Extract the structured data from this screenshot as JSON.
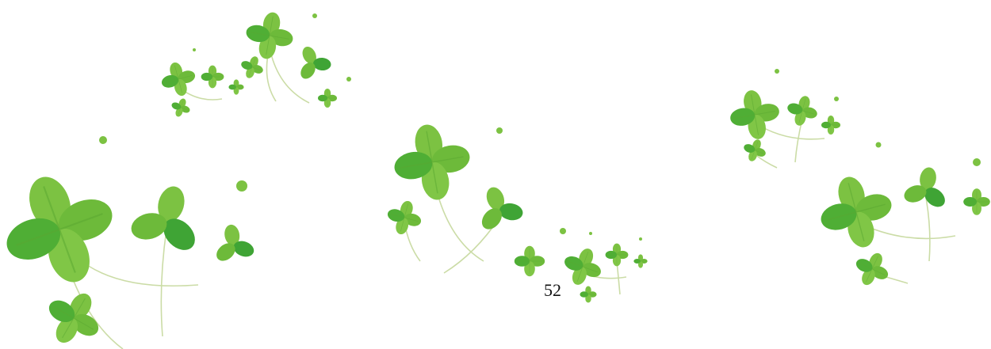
{
  "page_number": "52"
}
